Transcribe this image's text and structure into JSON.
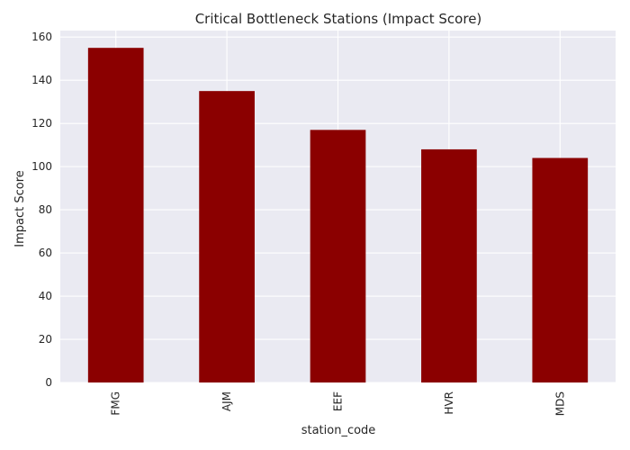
{
  "chart_data": {
    "type": "bar",
    "title": "Critical Bottleneck Stations (Impact Score)",
    "xlabel": "station_code",
    "ylabel": "Impact Score",
    "categories": [
      "FMG",
      "AJM",
      "EEF",
      "HVR",
      "MDS"
    ],
    "values": [
      155,
      135,
      117,
      108,
      104
    ],
    "ylim": [
      0,
      163
    ],
    "yticks": [
      0,
      20,
      40,
      60,
      80,
      100,
      120,
      140,
      160
    ],
    "grid": true,
    "bar_color": "#8b0000",
    "plot_background": "#eaeaf2",
    "grid_color": "#ffffff"
  }
}
